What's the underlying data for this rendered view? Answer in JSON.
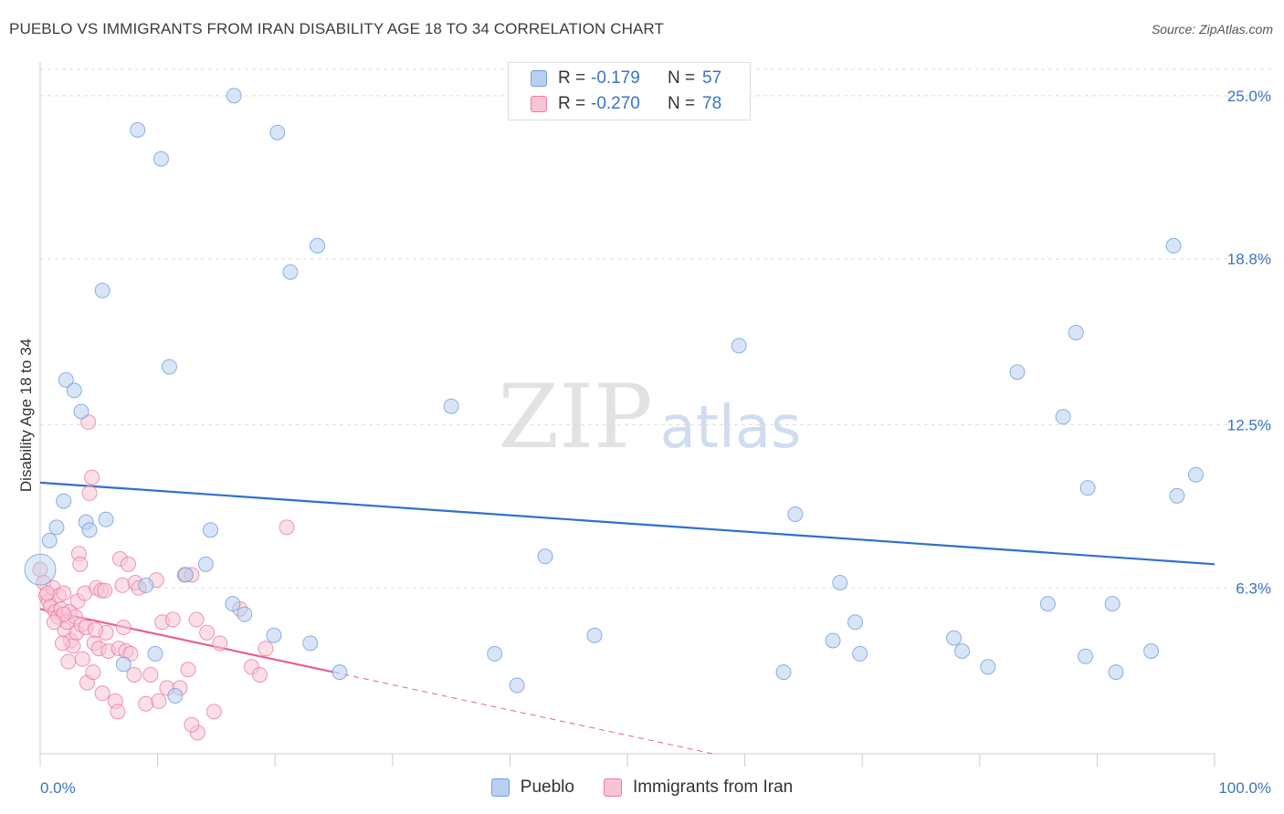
{
  "title": "PUEBLO VS IMMIGRANTS FROM IRAN DISABILITY AGE 18 TO 34 CORRELATION CHART",
  "source": "Source: ZipAtlas.com",
  "watermark": {
    "zip": "ZIP",
    "atlas": "atlas"
  },
  "colors": {
    "blue_fill": "#b8d0f0",
    "blue_stroke": "#6e9fdd",
    "blue_line": "#2f6fcf",
    "pink_fill": "#f8c4d4",
    "pink_stroke": "#ea7ca0",
    "pink_line": "#e8608f",
    "axis_label": "#3a74c4",
    "grid": "#dddddd"
  },
  "legend": {
    "rows": [
      {
        "r_label": "R =",
        "r_value": "-0.179",
        "n_label": "N =",
        "n_value": "57",
        "series": "blue"
      },
      {
        "r_label": "R =",
        "r_value": "-0.270",
        "n_label": "N =",
        "n_value": "78",
        "series": "pink"
      }
    ]
  },
  "bottom_legend": [
    {
      "label": "Pueblo",
      "series": "blue"
    },
    {
      "label": "Immigrants from Iran",
      "series": "pink"
    }
  ],
  "chart_data": {
    "type": "scatter",
    "title": "PUEBLO VS IMMIGRANTS FROM IRAN DISABILITY AGE 18 TO 34 CORRELATION CHART",
    "xlabel": "",
    "ylabel": "Disability Age 18 to 34",
    "xlim": [
      0,
      100
    ],
    "ylim": [
      0,
      26
    ],
    "x_tick_labels": [
      {
        "value": 0,
        "label": "0.0%"
      },
      {
        "value": 100,
        "label": "100.0%"
      }
    ],
    "y_tick_labels": [
      {
        "value": 6.3,
        "label": "6.3%"
      },
      {
        "value": 12.5,
        "label": "12.5%"
      },
      {
        "value": 18.8,
        "label": "18.8%"
      },
      {
        "value": 25.0,
        "label": "25.0%"
      }
    ],
    "grid": true,
    "legend_position": "top-center",
    "series": [
      {
        "name": "Pueblo",
        "color": "blue",
        "points": [
          [
            0.0,
            7.0
          ],
          [
            0.8,
            8.1
          ],
          [
            1.4,
            8.6
          ],
          [
            2.0,
            9.6
          ],
          [
            2.2,
            14.2
          ],
          [
            2.9,
            13.8
          ],
          [
            3.5,
            13.0
          ],
          [
            3.9,
            8.8
          ],
          [
            4.2,
            8.5
          ],
          [
            5.6,
            8.9
          ],
          [
            5.3,
            17.6
          ],
          [
            7.1,
            3.4
          ],
          [
            8.3,
            23.7
          ],
          [
            9.0,
            6.4
          ],
          [
            9.8,
            3.8
          ],
          [
            10.3,
            22.6
          ],
          [
            11.0,
            14.7
          ],
          [
            11.5,
            2.2
          ],
          [
            12.4,
            6.8
          ],
          [
            14.1,
            7.2
          ],
          [
            14.5,
            8.5
          ],
          [
            16.5,
            25.0
          ],
          [
            16.4,
            5.7
          ],
          [
            17.4,
            5.3
          ],
          [
            20.2,
            23.6
          ],
          [
            21.3,
            18.3
          ],
          [
            23.0,
            4.2
          ],
          [
            23.6,
            19.3
          ],
          [
            25.5,
            3.1
          ],
          [
            35.0,
            13.2
          ],
          [
            38.7,
            3.8
          ],
          [
            40.6,
            2.6
          ],
          [
            43.0,
            7.5
          ],
          [
            59.5,
            15.5
          ],
          [
            64.3,
            9.1
          ],
          [
            63.3,
            3.1
          ],
          [
            68.1,
            6.5
          ],
          [
            69.4,
            5.0
          ],
          [
            67.5,
            4.3
          ],
          [
            69.8,
            3.8
          ],
          [
            77.8,
            4.4
          ],
          [
            78.5,
            3.9
          ],
          [
            80.7,
            3.3
          ],
          [
            83.2,
            14.5
          ],
          [
            85.8,
            5.7
          ],
          [
            87.1,
            12.8
          ],
          [
            88.2,
            16.0
          ],
          [
            89.0,
            3.7
          ],
          [
            89.2,
            10.1
          ],
          [
            91.3,
            5.7
          ],
          [
            91.6,
            3.1
          ],
          [
            94.6,
            3.9
          ],
          [
            96.5,
            19.3
          ],
          [
            96.8,
            9.8
          ],
          [
            98.4,
            10.6
          ],
          [
            47.2,
            4.5
          ],
          [
            19.9,
            4.5
          ]
        ]
      },
      {
        "name": "Immigrants from Iran",
        "color": "pink",
        "points": [
          [
            0.0,
            7.0
          ],
          [
            0.3,
            6.5
          ],
          [
            0.5,
            6.0
          ],
          [
            0.7,
            5.8
          ],
          [
            0.9,
            5.6
          ],
          [
            1.1,
            6.3
          ],
          [
            1.3,
            5.4
          ],
          [
            1.5,
            5.2
          ],
          [
            1.6,
            6.0
          ],
          [
            1.8,
            5.5
          ],
          [
            2.0,
            6.1
          ],
          [
            2.1,
            4.7
          ],
          [
            2.3,
            5.0
          ],
          [
            2.5,
            5.4
          ],
          [
            2.6,
            4.3
          ],
          [
            2.8,
            4.1
          ],
          [
            3.0,
            5.2
          ],
          [
            3.1,
            4.6
          ],
          [
            3.2,
            5.8
          ],
          [
            3.3,
            7.6
          ],
          [
            3.4,
            7.2
          ],
          [
            3.5,
            4.9
          ],
          [
            3.6,
            3.6
          ],
          [
            3.8,
            6.1
          ],
          [
            3.9,
            4.8
          ],
          [
            4.0,
            2.7
          ],
          [
            4.1,
            12.6
          ],
          [
            4.2,
            9.9
          ],
          [
            4.4,
            10.5
          ],
          [
            4.5,
            3.1
          ],
          [
            4.6,
            4.2
          ],
          [
            4.8,
            6.3
          ],
          [
            5.0,
            4.0
          ],
          [
            5.2,
            6.2
          ],
          [
            5.3,
            2.3
          ],
          [
            5.5,
            6.2
          ],
          [
            5.6,
            4.6
          ],
          [
            5.8,
            3.9
          ],
          [
            6.4,
            2.0
          ],
          [
            6.7,
            4.0
          ],
          [
            6.8,
            7.4
          ],
          [
            7.0,
            6.4
          ],
          [
            7.1,
            4.8
          ],
          [
            7.3,
            3.9
          ],
          [
            7.5,
            7.2
          ],
          [
            7.7,
            3.8
          ],
          [
            8.1,
            6.5
          ],
          [
            8.4,
            6.3
          ],
          [
            9.0,
            1.9
          ],
          [
            9.4,
            3.0
          ],
          [
            9.9,
            6.6
          ],
          [
            10.1,
            2.0
          ],
          [
            10.4,
            5.0
          ],
          [
            10.8,
            2.5
          ],
          [
            11.3,
            5.1
          ],
          [
            11.9,
            2.5
          ],
          [
            12.3,
            6.8
          ],
          [
            12.6,
            3.2
          ],
          [
            12.9,
            6.8
          ],
          [
            13.3,
            5.1
          ],
          [
            14.2,
            4.6
          ],
          [
            14.8,
            1.6
          ],
          [
            15.3,
            4.2
          ],
          [
            17.0,
            5.5
          ],
          [
            18.0,
            3.3
          ],
          [
            18.7,
            3.0
          ],
          [
            19.2,
            4.0
          ],
          [
            21.0,
            8.6
          ],
          [
            13.4,
            0.8
          ],
          [
            12.9,
            1.1
          ],
          [
            6.6,
            1.6
          ],
          [
            2.0,
            5.3
          ],
          [
            1.2,
            5.0
          ],
          [
            0.6,
            6.1
          ],
          [
            1.9,
            4.2
          ],
          [
            2.4,
            3.5
          ],
          [
            4.7,
            4.7
          ],
          [
            8.0,
            3.0
          ]
        ]
      }
    ],
    "trendlines": [
      {
        "series": "Pueblo",
        "x": [
          0,
          100
        ],
        "y": [
          10.3,
          7.2
        ],
        "style": "solid"
      },
      {
        "series": "Immigrants from Iran",
        "x": [
          0,
          25
        ],
        "y": [
          5.5,
          3.1
        ],
        "style": "solid"
      },
      {
        "series": "Immigrants from Iran",
        "x": [
          25,
          100
        ],
        "y": [
          3.1,
          -4.1
        ],
        "style": "dashed"
      }
    ]
  }
}
